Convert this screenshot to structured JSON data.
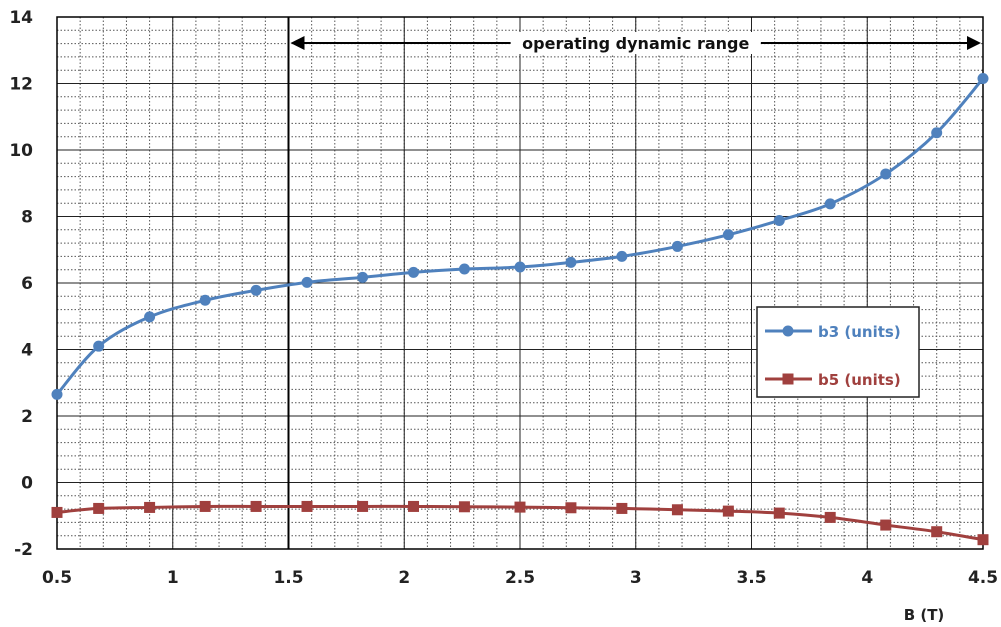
{
  "chart_data": {
    "type": "line",
    "title": "",
    "xlabel": "B (T)",
    "ylabel": "",
    "xlim": [
      0.5,
      4.5
    ],
    "ylim": [
      -2,
      14
    ],
    "xticks": [
      "0.5",
      "1",
      "1.5",
      "2",
      "2.5",
      "3",
      "3.5",
      "4",
      "4.5"
    ],
    "yticks": [
      "-2",
      "0",
      "2",
      "4",
      "6",
      "8",
      "10",
      "12",
      "14"
    ],
    "grid": true,
    "minor_grid": true,
    "legend_position": "right",
    "annotation": {
      "text": "operating dynamic range",
      "from": 1.5,
      "to": 4.5
    },
    "reference_line_x": 1.5,
    "x": [
      0.5,
      0.68,
      0.9,
      1.14,
      1.36,
      1.58,
      1.82,
      2.04,
      2.26,
      2.5,
      2.72,
      2.94,
      3.18,
      3.4,
      3.62,
      3.84,
      4.08,
      4.3,
      4.5
    ],
    "series": [
      {
        "name": "b3 (units)",
        "color": "#4f81bd",
        "marker": "circle",
        "values": [
          2.65,
          4.1,
          4.98,
          5.48,
          5.78,
          6.02,
          6.17,
          6.32,
          6.42,
          6.48,
          6.62,
          6.8,
          7.1,
          7.45,
          7.88,
          8.38,
          9.28,
          10.52,
          12.15
        ]
      },
      {
        "name": "b5 (units)",
        "color": "#a0403e",
        "marker": "square",
        "values": [
          -0.9,
          -0.78,
          -0.75,
          -0.72,
          -0.72,
          -0.72,
          -0.72,
          -0.72,
          -0.73,
          -0.74,
          -0.76,
          -0.78,
          -0.82,
          -0.86,
          -0.92,
          -1.05,
          -1.28,
          -1.48,
          -1.72
        ]
      }
    ]
  }
}
